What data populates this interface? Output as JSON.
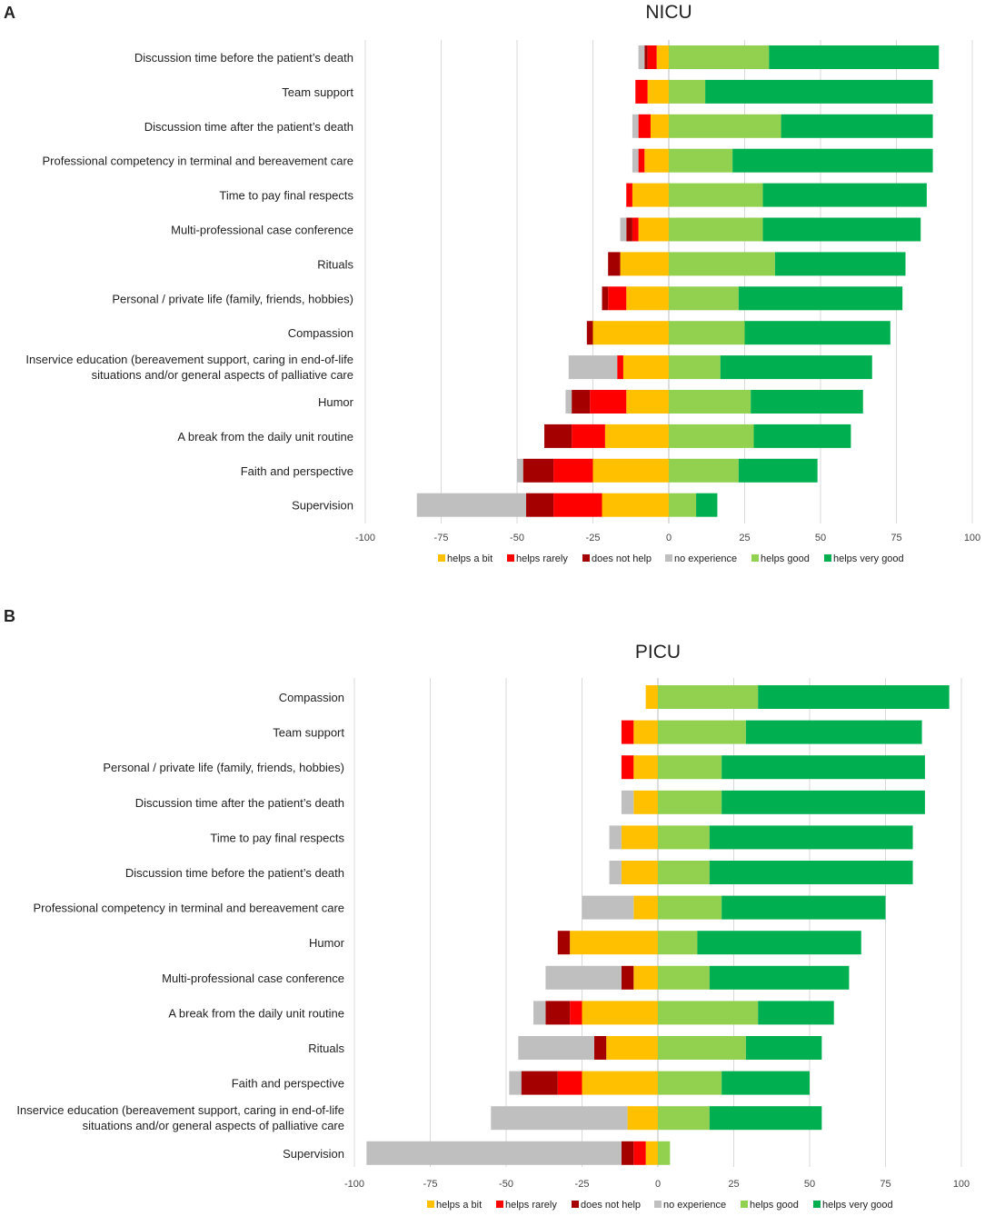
{
  "colors": {
    "helps a bit": "#ffc000",
    "helps rarely": "#ff0000",
    "does not help": "#a50000",
    "no experience": "#bfbfbf",
    "helps good": "#92d050",
    "helps very good": "#00b050"
  },
  "legend": [
    "helps a bit",
    "helps rarely",
    "does not help",
    "no experience",
    "helps good",
    "helps very good"
  ],
  "chart_data": [
    {
      "type": "bar",
      "orientation": "horizontal-diverging-stacked",
      "panel": "A",
      "title": "NICU",
      "xlim": [
        -100,
        100
      ],
      "xticks": [
        -100,
        -75,
        -50,
        -25,
        0,
        25,
        50,
        75,
        100
      ],
      "categories": [
        "Discussion time before the patient’s death",
        "Team support",
        "Discussion time after the patient’s death",
        "Professional competency in terminal and bereavement care",
        "Time to pay final respects",
        "Multi-professional case conference",
        "Rituals",
        "Personal / private life (family, friends, hobbies)",
        "Compassion",
        "Inservice education (bereavement support, caring in end-of-life|situations and/or general aspects of palliative care",
        "Humor",
        "A break from the daily unit routine",
        "Faith and perspective",
        "Supervision"
      ],
      "series": [
        {
          "name": "helps a bit",
          "values": [
            -4,
            -7,
            -6,
            -8,
            -12,
            -10,
            -16,
            -14,
            -25,
            -15,
            -14,
            -21,
            -25,
            -22
          ]
        },
        {
          "name": "helps rarely",
          "values": [
            -3,
            -4,
            -4,
            -2,
            -2,
            -2,
            0,
            -6,
            0,
            -2,
            -12,
            -11,
            -13,
            -16
          ]
        },
        {
          "name": "does not help",
          "values": [
            -1,
            0,
            0,
            0,
            0,
            -2,
            -4,
            -2,
            -2,
            0,
            -6,
            -9,
            -10,
            -9
          ]
        },
        {
          "name": "no experience",
          "values": [
            -2,
            0,
            -2,
            -2,
            0,
            -2,
            0,
            0,
            0,
            -16,
            -2,
            0,
            -2,
            -36
          ]
        },
        {
          "name": "helps good",
          "values": [
            33,
            12,
            37,
            21,
            31,
            31,
            35,
            23,
            25,
            17,
            27,
            28,
            23,
            9
          ]
        },
        {
          "name": "helps very good",
          "values": [
            56,
            75,
            50,
            66,
            54,
            52,
            43,
            54,
            48,
            50,
            37,
            32,
            26,
            7
          ]
        }
      ]
    },
    {
      "type": "bar",
      "orientation": "horizontal-diverging-stacked",
      "panel": "B",
      "title": "PICU",
      "xlim": [
        -100,
        100
      ],
      "xticks": [
        -100,
        -75,
        -50,
        -25,
        0,
        25,
        50,
        75,
        100
      ],
      "categories": [
        "Compassion",
        "Team support",
        "Personal / private life (family, friends, hobbies)",
        "Discussion time after the patient’s death",
        "Time to pay final respects",
        "Discussion time before the patient’s death",
        "Professional competency in terminal and bereavement care",
        "Humor",
        "Multi-professional case conference",
        "A break from the daily unit routine",
        "Rituals",
        "Faith and perspective",
        "Inservice education (bereavement support, caring in end-of-life|situations and/or general aspects of palliative care",
        "Supervision"
      ],
      "series": [
        {
          "name": "helps a bit",
          "values": [
            -4,
            -8,
            -8,
            -8,
            -12,
            -12,
            -8,
            -29,
            -8,
            -25,
            -17,
            -25,
            -10,
            -4
          ]
        },
        {
          "name": "helps rarely",
          "values": [
            0,
            -4,
            -4,
            0,
            0,
            0,
            0,
            0,
            0,
            -4,
            0,
            -8,
            0,
            -4
          ]
        },
        {
          "name": "does not help",
          "values": [
            0,
            0,
            0,
            0,
            0,
            0,
            0,
            -4,
            -4,
            -8,
            -4,
            -12,
            0,
            -4
          ]
        },
        {
          "name": "no experience",
          "values": [
            0,
            0,
            0,
            -4,
            -4,
            -4,
            -17,
            0,
            -25,
            -4,
            -25,
            -4,
            -45,
            -84
          ]
        },
        {
          "name": "helps good",
          "values": [
            33,
            29,
            21,
            21,
            17,
            17,
            21,
            13,
            17,
            33,
            29,
            21,
            17,
            4
          ]
        },
        {
          "name": "helps very good",
          "values": [
            63,
            58,
            67,
            67,
            67,
            67,
            54,
            54,
            46,
            25,
            25,
            29,
            37,
            0
          ]
        }
      ]
    }
  ]
}
